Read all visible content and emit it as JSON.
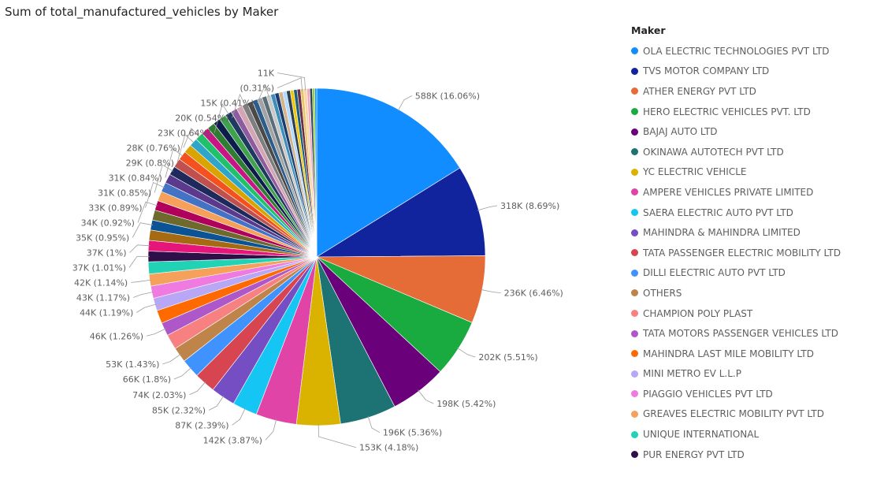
{
  "chart_data": {
    "type": "pie",
    "title": "Sum of total_manufactured_vehicles by Maker",
    "legend_title": "Maker",
    "legend_position": "right",
    "slices": [
      {
        "name": "OLA ELECTRIC TECHNOLOGIES PVT LTD",
        "value": 588000,
        "label": "588K (16.06%)",
        "color": "#118DFF"
      },
      {
        "name": "TVS MOTOR COMPANY LTD",
        "value": 318000,
        "label": "318K (8.69%)",
        "color": "#12239E"
      },
      {
        "name": "ATHER ENERGY PVT LTD",
        "value": 236000,
        "label": "236K (6.46%)",
        "color": "#E66C37"
      },
      {
        "name": "HERO ELECTRIC VEHICLES PVT. LTD",
        "value": 202000,
        "label": "202K (5.51%)",
        "color": "#1AAB40"
      },
      {
        "name": "BAJAJ AUTO LTD",
        "value": 198000,
        "label": "198K (5.42%)",
        "color": "#6B007B"
      },
      {
        "name": "OKINAWA AUTOTECH PVT LTD",
        "value": 196000,
        "label": "196K (5.36%)",
        "color": "#1D7373"
      },
      {
        "name": "YC ELECTRIC VEHICLE",
        "value": 153000,
        "label": "153K (4.18%)",
        "color": "#D9B300"
      },
      {
        "name": "AMPERE VEHICLES PRIVATE LIMITED",
        "value": 142000,
        "label": "142K (3.87%)",
        "color": "#E044A7"
      },
      {
        "name": "SAERA ELECTRIC AUTO PVT LTD",
        "value": 87000,
        "label": "87K (2.39%)",
        "color": "#15C6F4"
      },
      {
        "name": "MAHINDRA & MAHINDRA LIMITED",
        "value": 85000,
        "label": "85K (2.32%)",
        "color": "#744EC2"
      },
      {
        "name": "TATA PASSENGER ELECTRIC MOBILITY LTD",
        "value": 74000,
        "label": "74K (2.03%)",
        "color": "#D64550"
      },
      {
        "name": "DILLI ELECTRIC AUTO PVT LTD",
        "value": 66000,
        "label": "66K (1.8%)",
        "color": "#4092FF"
      },
      {
        "name": "OTHERS",
        "value": 53000,
        "label": "53K (1.43%)",
        "color": "#BE8449"
      },
      {
        "name": "CHAMPION POLY PLAST",
        "value": 53000,
        "label": "",
        "color": "#F78181"
      },
      {
        "name": "TATA MOTORS PASSENGER VEHICLES LTD",
        "value": 46000,
        "label": "46K (1.26%)",
        "color": "#AE57C9"
      },
      {
        "name": "MAHINDRA LAST MILE MOBILITY LTD",
        "value": 46000,
        "label": "",
        "color": "#FF6A00"
      },
      {
        "name": "MINI METRO EV L.L.P",
        "value": 44000,
        "label": "44K (1.19%)",
        "color": "#B7A7F5"
      },
      {
        "name": "PIAGGIO VEHICLES PVT LTD",
        "value": 43000,
        "label": "43K (1.17%)",
        "color": "#F07BE0"
      },
      {
        "name": "GREAVES ELECTRIC MOBILITY PVT LTD",
        "value": 42000,
        "label": "42K (1.14%)",
        "color": "#F5A15B"
      },
      {
        "name": "UNIQUE INTERNATIONAL",
        "value": 42000,
        "label": "",
        "color": "#21D2B5"
      },
      {
        "name": "PUR ENERGY PVT LTD",
        "value": 37000,
        "label": "37K (1.01%)",
        "color": "#2E0F48"
      },
      {
        "name": "",
        "value": 37000,
        "label": "37K (1%)",
        "color": "#E6157A"
      },
      {
        "name": "",
        "value": 36000,
        "label": "",
        "color": "#A66A12"
      },
      {
        "name": "",
        "value": 35000,
        "label": "35K (0.95%)",
        "color": "#0B5394"
      },
      {
        "name": "",
        "value": 35000,
        "label": "",
        "color": "#6E6A2E"
      },
      {
        "name": "",
        "value": 34000,
        "label": "34K (0.92%)",
        "color": "#B1005C"
      },
      {
        "name": "",
        "value": 34000,
        "label": "",
        "color": "#F5A15B"
      },
      {
        "name": "",
        "value": 33000,
        "label": "33K (0.89%)",
        "color": "#4472C4"
      },
      {
        "name": "",
        "value": 32000,
        "label": "",
        "color": "#5B3A8E"
      },
      {
        "name": "",
        "value": 31000,
        "label": "31K (0.85%)",
        "color": "#1E2A5C"
      },
      {
        "name": "",
        "value": 31000,
        "label": "",
        "color": "#C0504D"
      },
      {
        "name": "",
        "value": 31000,
        "label": "31K (0.84%)",
        "color": "#F4511E"
      },
      {
        "name": "",
        "value": 30000,
        "label": "",
        "color": "#D9A300"
      },
      {
        "name": "",
        "value": 29000,
        "label": "29K (0.8%)",
        "color": "#2FA6C9"
      },
      {
        "name": "",
        "value": 28000,
        "label": "28K (0.76%)",
        "color": "#21C16B"
      },
      {
        "name": "",
        "value": 27000,
        "label": "",
        "color": "#C71585"
      },
      {
        "name": "",
        "value": 26000,
        "label": "",
        "color": "#2E7D32"
      },
      {
        "name": "",
        "value": 25000,
        "label": "",
        "color": "#0E1B4D"
      },
      {
        "name": "",
        "value": 24000,
        "label": "",
        "color": "#3FA34D"
      },
      {
        "name": "",
        "value": 23000,
        "label": "23K (0.64%)",
        "color": "#1F3A5F"
      },
      {
        "name": "",
        "value": 22000,
        "label": "",
        "color": "#8E5C9E"
      },
      {
        "name": "",
        "value": 21000,
        "label": "",
        "color": "#D4A6B5"
      },
      {
        "name": "",
        "value": 20000,
        "label": "20K (0.54%)",
        "color": "#7F7F7F"
      },
      {
        "name": "",
        "value": 19000,
        "label": "",
        "color": "#4A4A4A"
      },
      {
        "name": "",
        "value": 18000,
        "label": "",
        "color": "#2B5C8A"
      },
      {
        "name": "",
        "value": 17000,
        "label": "",
        "color": "#A3A3A3"
      },
      {
        "name": "",
        "value": 16000,
        "label": "",
        "color": "#5A6E7A"
      },
      {
        "name": "",
        "value": 15000,
        "label": "15K (0.41%)",
        "color": "#C9C9C9"
      },
      {
        "name": "",
        "value": 15000,
        "label": "",
        "color": "#3D8EB9"
      },
      {
        "name": "",
        "value": 14000,
        "label": "",
        "color": "#1B3B6F"
      },
      {
        "name": "",
        "value": 14000,
        "label": "",
        "color": "#D2B48C"
      },
      {
        "name": "",
        "value": 13000,
        "label": "",
        "color": "#B3D9FF"
      },
      {
        "name": "",
        "value": 13000,
        "label": "",
        "color": "#2C3E50"
      },
      {
        "name": "",
        "value": 12000,
        "label": "",
        "color": "#F0C808"
      },
      {
        "name": "",
        "value": 12000,
        "label": "",
        "color": "#1A5F7A"
      },
      {
        "name": "",
        "value": 12000,
        "label": "",
        "color": "#6D2E46"
      },
      {
        "name": "",
        "value": 11000,
        "label": "(0.31%)",
        "color": "#E9C46A"
      },
      {
        "name": "",
        "value": 11000,
        "label": "11K",
        "color": "#F6D5A8"
      },
      {
        "name": "",
        "value": 10000,
        "label": "",
        "color": "#F4A6C0"
      },
      {
        "name": "",
        "value": 9000,
        "label": "",
        "color": "#264653"
      },
      {
        "name": "",
        "value": 8000,
        "label": "",
        "color": "#9ACD32"
      },
      {
        "name": "",
        "value": 7000,
        "label": "",
        "color": "#118DFF"
      }
    ]
  }
}
